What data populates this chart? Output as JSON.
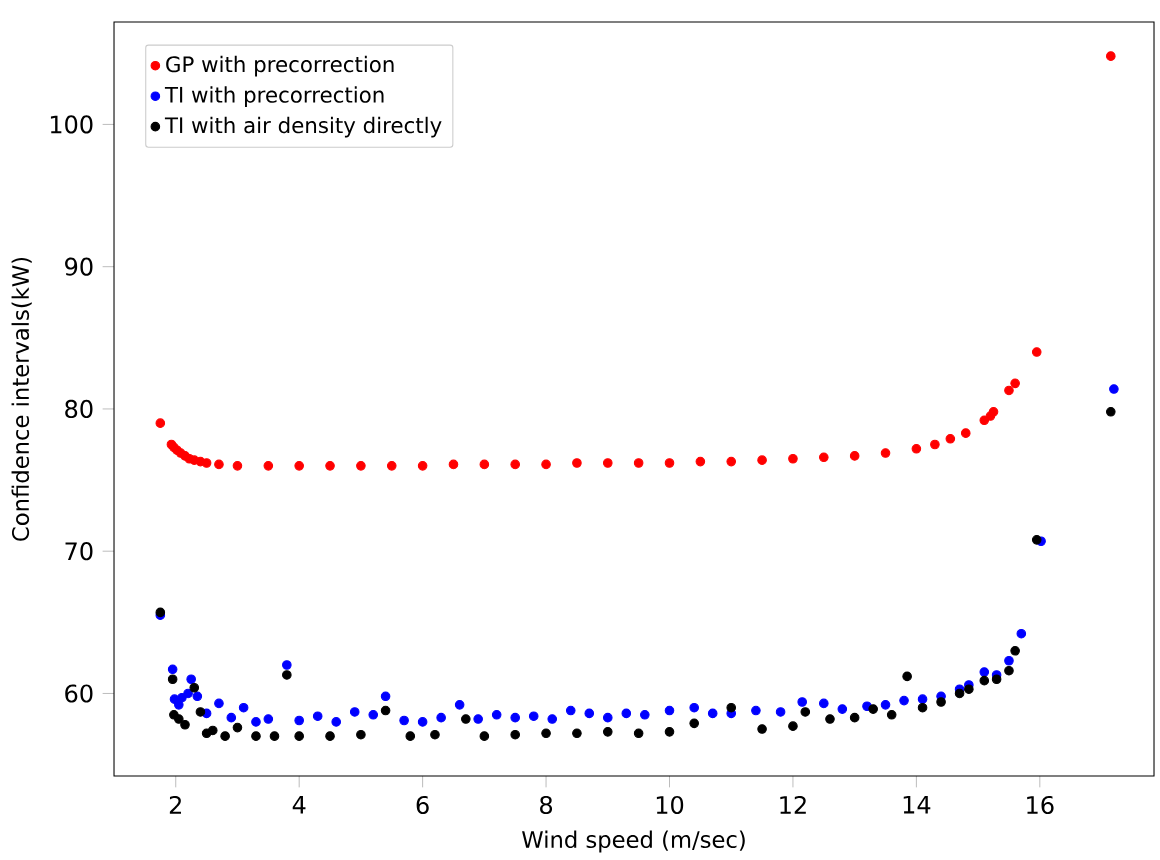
{
  "chart_data": {
    "type": "scatter",
    "xlabel": "Wind speed (m/sec)",
    "ylabel": "Confidence intervals(kW)",
    "xlim": [
      1.0,
      17.85
    ],
    "ylim": [
      54.2,
      107.2
    ],
    "xticks": [
      2,
      4,
      6,
      8,
      10,
      12,
      14,
      16
    ],
    "yticks": [
      60,
      70,
      80,
      90,
      100
    ],
    "grid": false,
    "legend": "top left",
    "marker": "circle",
    "series": [
      {
        "name": "GP with precorrection",
        "color": "#ff0000",
        "x": [
          1.75,
          1.93,
          1.97,
          2.02,
          2.08,
          2.15,
          2.22,
          2.3,
          2.4,
          2.5,
          2.7,
          3.0,
          3.5,
          4,
          4.5,
          5,
          5.5,
          6,
          6.5,
          7,
          7.5,
          8,
          8.5,
          9,
          9.5,
          10,
          10.5,
          11,
          11.5,
          12,
          12.5,
          13,
          13.5,
          14,
          14.3,
          14.55,
          14.8,
          15.1,
          15.2,
          15.25,
          15.5,
          15.6,
          15.95,
          17.15
        ],
        "values": [
          79,
          77.5,
          77.3,
          77.1,
          76.9,
          76.7,
          76.5,
          76.4,
          76.3,
          76.2,
          76.1,
          76.0,
          76.0,
          76.0,
          76.0,
          76.0,
          76.0,
          76.0,
          76.1,
          76.1,
          76.1,
          76.1,
          76.2,
          76.2,
          76.2,
          76.2,
          76.3,
          76.3,
          76.4,
          76.5,
          76.6,
          76.7,
          76.9,
          77.2,
          77.5,
          77.9,
          78.3,
          79.2,
          79.5,
          79.8,
          81.3,
          81.8,
          84,
          104.8
        ]
      },
      {
        "name": "TI with precorrection",
        "color": "#0000ff",
        "x": [
          1.75,
          1.95,
          1.98,
          2.05,
          2.1,
          2.2,
          2.25,
          2.35,
          2.5,
          2.7,
          2.9,
          3.1,
          3.3,
          3.5,
          3.8,
          4.0,
          4.3,
          4.6,
          4.9,
          5.2,
          5.4,
          5.7,
          6.0,
          6.3,
          6.6,
          6.9,
          7.2,
          7.5,
          7.8,
          8.1,
          8.4,
          8.7,
          9.0,
          9.3,
          9.6,
          10.0,
          10.4,
          10.7,
          11.0,
          11.4,
          11.8,
          12.15,
          12.5,
          12.8,
          13.2,
          13.5,
          13.8,
          14.1,
          14.4,
          14.7,
          14.85,
          15.1,
          15.3,
          15.5,
          15.7,
          16.02,
          17.2
        ],
        "values": [
          65.5,
          61.7,
          59.6,
          59.2,
          59.7,
          60.0,
          61.0,
          59.8,
          58.6,
          59.3,
          58.3,
          59.0,
          58.0,
          58.2,
          62.0,
          58.1,
          58.4,
          58.0,
          58.7,
          58.5,
          59.8,
          58.1,
          58.0,
          58.3,
          59.2,
          58.2,
          58.5,
          58.3,
          58.4,
          58.2,
          58.8,
          58.6,
          58.3,
          58.6,
          58.5,
          58.8,
          59.0,
          58.6,
          58.6,
          58.8,
          58.7,
          59.4,
          59.3,
          58.9,
          59.1,
          59.2,
          59.5,
          59.6,
          59.8,
          60.3,
          60.6,
          61.5,
          61.3,
          62.3,
          64.2,
          70.7,
          81.4
        ]
      },
      {
        "name": "TI with air density directly",
        "color": "#000000",
        "x": [
          1.75,
          1.95,
          1.97,
          2.05,
          2.15,
          2.3,
          2.4,
          2.5,
          2.6,
          2.8,
          3.0,
          3.3,
          3.6,
          3.8,
          4.0,
          4.5,
          5.0,
          5.4,
          5.8,
          6.2,
          6.7,
          7.0,
          7.5,
          8.0,
          8.5,
          9.0,
          9.5,
          10.0,
          10.4,
          11.0,
          11.5,
          12.0,
          12.2,
          12.6,
          13.0,
          13.3,
          13.6,
          13.85,
          14.1,
          14.4,
          14.7,
          14.85,
          15.1,
          15.3,
          15.5,
          15.6,
          15.95,
          17.15
        ],
        "values": [
          65.7,
          61.0,
          58.5,
          58.2,
          57.8,
          60.4,
          58.7,
          57.2,
          57.4,
          57.0,
          57.6,
          57.0,
          57.0,
          61.3,
          57.0,
          57.0,
          57.1,
          58.8,
          57.0,
          57.1,
          58.2,
          57.0,
          57.1,
          57.2,
          57.2,
          57.3,
          57.2,
          57.3,
          57.9,
          59.0,
          57.5,
          57.7,
          58.7,
          58.2,
          58.3,
          58.9,
          58.5,
          61.2,
          59.0,
          59.4,
          60.0,
          60.3,
          60.9,
          61.0,
          61.6,
          63.0,
          70.8,
          79.8
        ]
      }
    ]
  }
}
